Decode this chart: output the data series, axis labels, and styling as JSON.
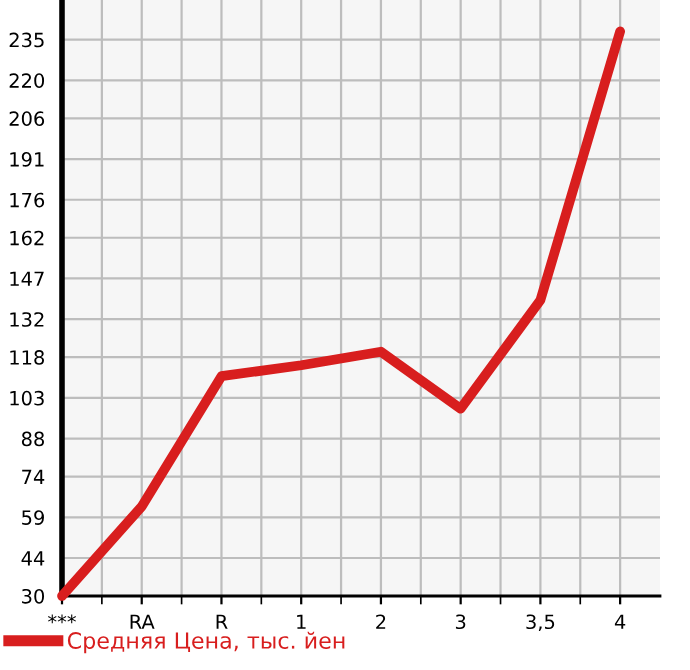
{
  "chart_data": {
    "type": "line",
    "categories": [
      "***",
      "RA",
      "R",
      "1",
      "2",
      "3",
      "3,5",
      "4"
    ],
    "series": [
      {
        "name": "Средняя Цена, тыс. йен",
        "color": "#d81e1e",
        "values": [
          30,
          63,
          111,
          115,
          120,
          99,
          139,
          238
        ]
      }
    ],
    "ylim": [
      30,
      249.6
    ],
    "yticks": [
      30,
      44,
      59,
      74,
      88,
      103,
      118,
      132,
      147,
      162,
      176,
      191,
      206,
      220,
      235
    ],
    "grid": true,
    "legend": "bottom left",
    "marker": "none",
    "line_style": "solid"
  }
}
